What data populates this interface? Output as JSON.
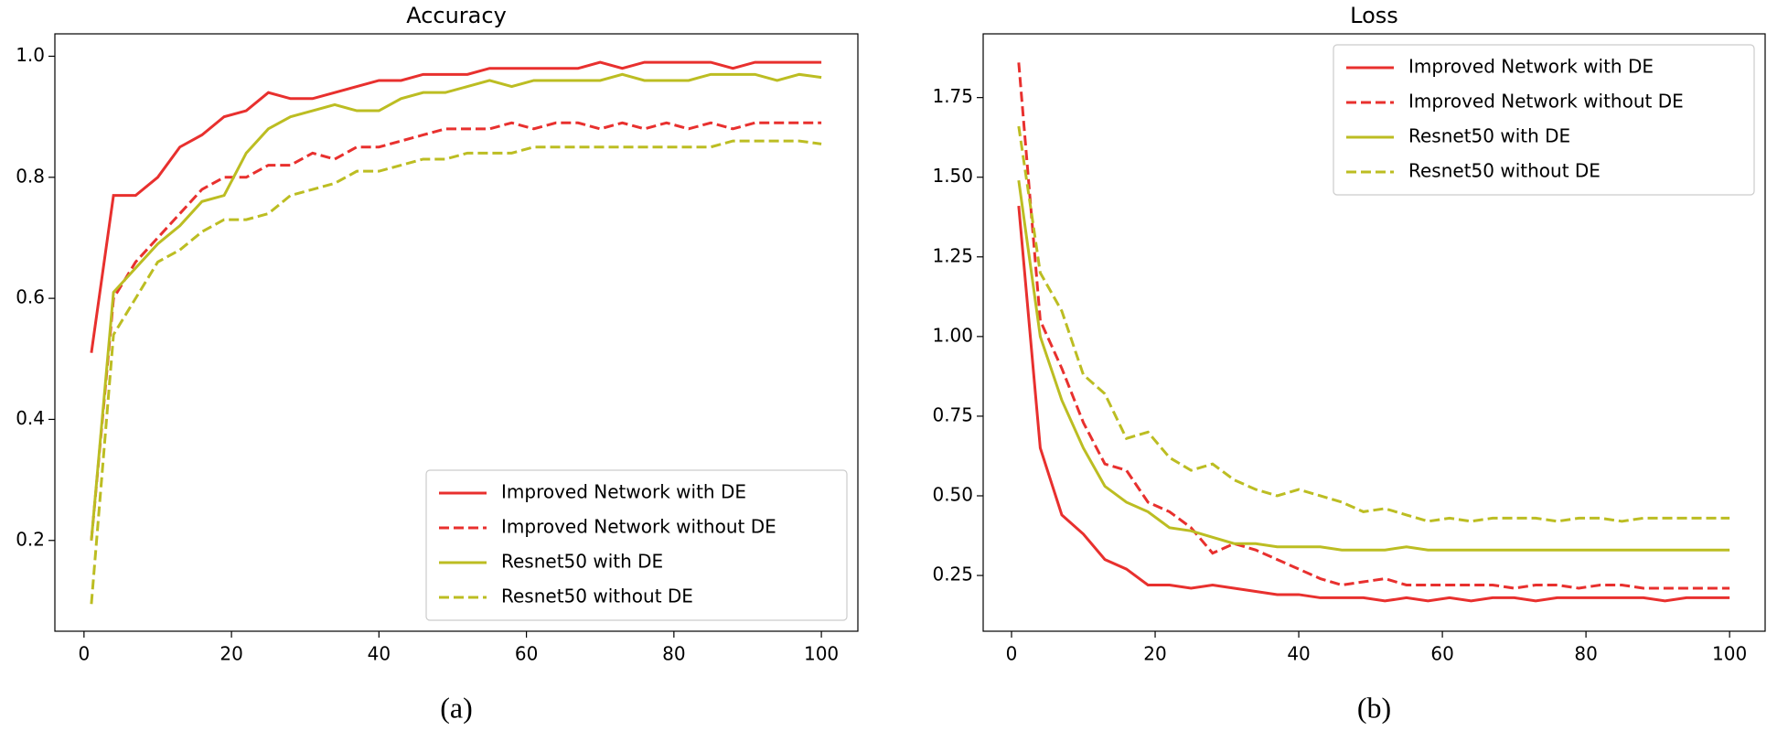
{
  "chart_data": [
    {
      "type": "line",
      "title": "Accuracy",
      "caption": "(a)",
      "legend_loc": "lower right",
      "x": [
        1,
        4,
        7,
        10,
        13,
        16,
        19,
        22,
        25,
        28,
        31,
        34,
        37,
        40,
        43,
        46,
        49,
        52,
        55,
        58,
        61,
        64,
        67,
        70,
        73,
        76,
        79,
        82,
        85,
        88,
        91,
        94,
        97,
        100
      ],
      "xlim": [
        -3.95,
        104.95
      ],
      "xticks": [
        0,
        20,
        40,
        60,
        80,
        100
      ],
      "ylim": [
        0.05,
        1.037
      ],
      "yticks": [
        0.2,
        0.4,
        0.6,
        0.8,
        {
          "value": 1,
          "label": "1.0"
        }
      ],
      "series": [
        {
          "name": "Improved Network with DE",
          "color": "#e8302e",
          "linestyle": "solid",
          "values": [
            0.51,
            0.77,
            0.77,
            0.8,
            0.85,
            0.87,
            0.9,
            0.91,
            0.94,
            0.93,
            0.93,
            0.94,
            0.95,
            0.96,
            0.96,
            0.97,
            0.97,
            0.97,
            0.98,
            0.98,
            0.98,
            0.98,
            0.98,
            0.99,
            0.98,
            0.99,
            0.99,
            0.99,
            0.99,
            0.98,
            0.99,
            0.99,
            0.99,
            0.99
          ]
        },
        {
          "name": "Improved Network without DE",
          "color": "#e8302e",
          "linestyle": "dashed",
          "values": [
            0.2,
            0.6,
            0.66,
            0.7,
            0.74,
            0.78,
            0.8,
            0.8,
            0.82,
            0.82,
            0.84,
            0.83,
            0.85,
            0.85,
            0.86,
            0.87,
            0.88,
            0.88,
            0.88,
            0.89,
            0.88,
            0.89,
            0.89,
            0.88,
            0.89,
            0.88,
            0.89,
            0.88,
            0.89,
            0.88,
            0.89,
            0.89,
            0.89,
            0.89
          ]
        },
        {
          "name": "Resnet50 with DE",
          "color": "#bcbd22",
          "linestyle": "solid",
          "values": [
            0.2,
            0.61,
            0.65,
            0.69,
            0.72,
            0.76,
            0.77,
            0.84,
            0.88,
            0.9,
            0.91,
            0.92,
            0.91,
            0.91,
            0.93,
            0.94,
            0.94,
            0.95,
            0.96,
            0.95,
            0.96,
            0.96,
            0.96,
            0.96,
            0.97,
            0.96,
            0.96,
            0.96,
            0.97,
            0.97,
            0.97,
            0.96,
            0.97,
            0.965
          ]
        },
        {
          "name": "Resnet50 without DE",
          "color": "#bcbd22",
          "linestyle": "dashed",
          "values": [
            0.095,
            0.54,
            0.6,
            0.66,
            0.68,
            0.71,
            0.73,
            0.73,
            0.74,
            0.77,
            0.78,
            0.79,
            0.81,
            0.81,
            0.82,
            0.83,
            0.83,
            0.84,
            0.84,
            0.84,
            0.85,
            0.85,
            0.85,
            0.85,
            0.85,
            0.85,
            0.85,
            0.85,
            0.85,
            0.86,
            0.86,
            0.86,
            0.86,
            0.855
          ]
        }
      ]
    },
    {
      "type": "line",
      "title": "Loss",
      "caption": "(b)",
      "legend_loc": "upper right",
      "x": [
        1,
        4,
        7,
        10,
        13,
        16,
        19,
        22,
        25,
        28,
        31,
        34,
        37,
        40,
        43,
        46,
        49,
        52,
        55,
        58,
        61,
        64,
        67,
        70,
        73,
        76,
        79,
        82,
        85,
        88,
        91,
        94,
        97,
        100
      ],
      "xlim": [
        -3.95,
        104.95
      ],
      "xticks": [
        0,
        20,
        40,
        60,
        80,
        100
      ],
      "ylim": [
        0.075,
        1.95
      ],
      "yticks": [
        0.25,
        {
          "value": 0.5,
          "label": "0.50"
        },
        0.75,
        {
          "value": 1,
          "label": "1.00"
        },
        1.25,
        {
          "value": 1.5,
          "label": "1.50"
        },
        1.75
      ],
      "series": [
        {
          "name": "Improved Network with DE",
          "color": "#e8302e",
          "linestyle": "solid",
          "values": [
            1.41,
            0.65,
            0.44,
            0.38,
            0.3,
            0.27,
            0.22,
            0.22,
            0.21,
            0.22,
            0.21,
            0.2,
            0.19,
            0.19,
            0.18,
            0.18,
            0.18,
            0.17,
            0.18,
            0.17,
            0.18,
            0.17,
            0.18,
            0.18,
            0.17,
            0.18,
            0.18,
            0.18,
            0.18,
            0.18,
            0.17,
            0.18,
            0.18,
            0.18
          ]
        },
        {
          "name": "Improved Network without DE",
          "color": "#e8302e",
          "linestyle": "dashed",
          "values": [
            1.86,
            1.05,
            0.9,
            0.73,
            0.6,
            0.58,
            0.48,
            0.45,
            0.4,
            0.32,
            0.35,
            0.33,
            0.3,
            0.27,
            0.24,
            0.22,
            0.23,
            0.24,
            0.22,
            0.22,
            0.22,
            0.22,
            0.22,
            0.21,
            0.22,
            0.22,
            0.21,
            0.22,
            0.22,
            0.21,
            0.21,
            0.21,
            0.21,
            0.21
          ]
        },
        {
          "name": "Resnet50 with DE",
          "color": "#bcbd22",
          "linestyle": "solid",
          "values": [
            1.49,
            1.0,
            0.8,
            0.65,
            0.53,
            0.48,
            0.45,
            0.4,
            0.39,
            0.37,
            0.35,
            0.35,
            0.34,
            0.34,
            0.34,
            0.33,
            0.33,
            0.33,
            0.34,
            0.33,
            0.33,
            0.33,
            0.33,
            0.33,
            0.33,
            0.33,
            0.33,
            0.33,
            0.33,
            0.33,
            0.33,
            0.33,
            0.33,
            0.33
          ]
        },
        {
          "name": "Resnet50 without DE",
          "color": "#bcbd22",
          "linestyle": "dashed",
          "values": [
            1.66,
            1.2,
            1.08,
            0.88,
            0.82,
            0.68,
            0.7,
            0.62,
            0.58,
            0.6,
            0.55,
            0.52,
            0.5,
            0.52,
            0.5,
            0.48,
            0.45,
            0.46,
            0.44,
            0.42,
            0.43,
            0.42,
            0.43,
            0.43,
            0.43,
            0.42,
            0.43,
            0.43,
            0.42,
            0.43,
            0.43,
            0.43,
            0.43,
            0.43
          ]
        }
      ]
    }
  ]
}
